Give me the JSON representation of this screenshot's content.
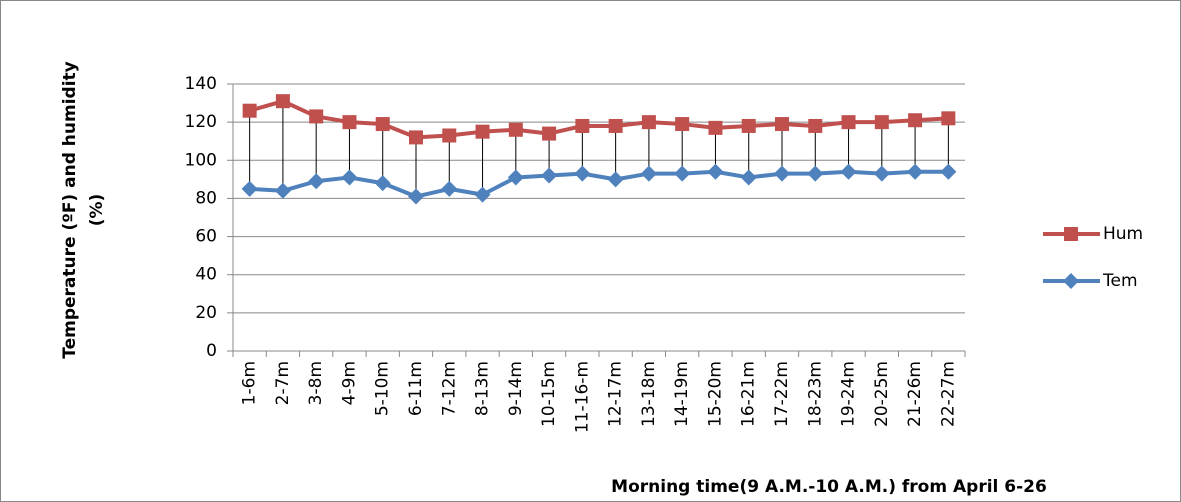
{
  "chart_data": {
    "type": "line",
    "categories": [
      "1-6m",
      "2-7m",
      "3-8m",
      "4-9m",
      "5-10m",
      "6-11m",
      "7-12m",
      "8-13m",
      "9-14m",
      "10-15m",
      "11-16-m",
      "12-17m",
      "13-18m",
      "14-19m",
      "15-20m",
      "16-21m",
      "17-22m",
      "18-23m",
      "19-24m",
      "20-25m",
      "21-26m",
      "22-27m"
    ],
    "series": [
      {
        "name": "Hum",
        "color": "#c0504d",
        "marker": "square",
        "values": [
          126,
          131,
          123,
          120,
          119,
          112,
          113,
          115,
          116,
          114,
          118,
          118,
          120,
          119,
          117,
          118,
          119,
          118,
          120,
          120,
          121,
          122
        ]
      },
      {
        "name": "Tem",
        "color": "#4f81bd",
        "marker": "diamond",
        "values": [
          85,
          84,
          89,
          91,
          88,
          81,
          85,
          82,
          91,
          92,
          93,
          90,
          93,
          93,
          94,
          91,
          93,
          93,
          94,
          93,
          94,
          94
        ]
      }
    ],
    "ylabel": [
      "Temperature (ºF) and humidity",
      "(%)"
    ],
    "xlabel": "Morning time(9 A.M.-10 A.M.) from April 6-26",
    "ylim": [
      0,
      140
    ],
    "yticks": [
      0,
      20,
      40,
      60,
      80,
      100,
      120,
      140
    ],
    "grid": true,
    "drop_lines": true,
    "legend": "right"
  }
}
